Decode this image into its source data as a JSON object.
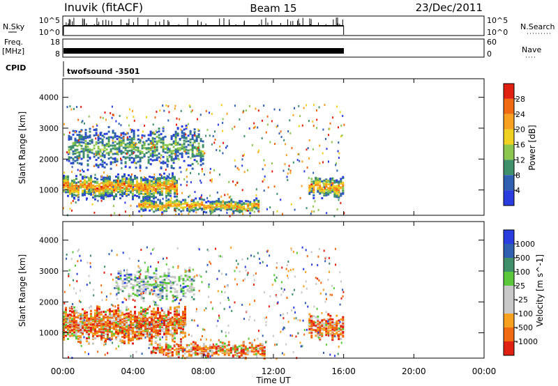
{
  "header": {
    "station": "Inuvik (fitACF)",
    "beam": "Beam 15",
    "date": "23/Dec/2011"
  },
  "status_panels": {
    "nsky_label": "N.Sky",
    "nsky_ticks": [
      "10^5",
      "10^0"
    ],
    "nsearch_label": "N.Search",
    "freq_label": "Freq.",
    "freq_unit": "[MHz]",
    "freq_ticks": [
      "18",
      "8"
    ],
    "nave_label": "Nave",
    "nave_ticks": [
      "60",
      "0"
    ],
    "cpid_label": "CPID",
    "cpid_value": "twofsound -3501"
  },
  "time_axis": {
    "label": "Time UT",
    "ticks": [
      "00:00",
      "04:00",
      "08:00",
      "12:00",
      "16:00",
      "20:00",
      "00:00"
    ]
  },
  "colors": {
    "power_scale": [
      "#2a3ee0",
      "#2f5fb0",
      "#3f8f6a",
      "#8cc850",
      "#f0d020",
      "#f8a020",
      "#f06a10",
      "#e02010"
    ],
    "velocity_scale": [
      "#e02010",
      "#f06a10",
      "#f8a020",
      "#c8c8c8",
      "#c8c8c8",
      "#5ac83a",
      "#3f8f6a",
      "#2f5fb0",
      "#2a3ee0"
    ]
  },
  "chart_data": [
    {
      "type": "heatmap",
      "title": "Power",
      "xlabel": "Time UT",
      "ylabel": "Slant Range [km]",
      "y_ticks": [
        1000,
        2000,
        3000,
        4000
      ],
      "ylim": [
        180,
        4600
      ],
      "xlim_hours": [
        0,
        24
      ],
      "data_extent_hours": [
        0,
        16
      ],
      "colorbar_label": "Power [dB]",
      "colorbar_ticks": [
        4,
        8,
        12,
        16,
        20,
        24,
        28
      ],
      "bands": [
        {
          "t0": 0.0,
          "t1": 6.5,
          "r_center": 1150,
          "r_half_width": 350,
          "intensity": 0.85
        },
        {
          "t0": 4.3,
          "t1": 11.2,
          "r_center": 520,
          "r_half_width": 200,
          "intensity": 0.8
        },
        {
          "t0": 14.0,
          "t1": 16.0,
          "r_center": 1150,
          "r_half_width": 300,
          "intensity": 0.8
        },
        {
          "t0": 0.3,
          "t1": 8.0,
          "r_center": 2400,
          "r_half_width": 600,
          "intensity": 0.4
        }
      ]
    },
    {
      "type": "heatmap",
      "title": "Velocity",
      "xlabel": "Time UT",
      "ylabel": "Slant Range [km]",
      "y_ticks": [
        1000,
        2000,
        3000,
        4000
      ],
      "ylim": [
        180,
        4600
      ],
      "xlim_hours": [
        0,
        24
      ],
      "data_extent_hours": [
        0,
        16
      ],
      "colorbar_label": "Velocity [m s^-1]",
      "colorbar_ticks": [
        1000,
        500,
        100,
        25,
        -25,
        -100,
        -500,
        -1000
      ],
      "bands": [
        {
          "t0": 0.0,
          "t1": 7.0,
          "r_center": 1300,
          "r_half_width": 500,
          "intensity": 0.85
        },
        {
          "t0": 5.0,
          "t1": 11.5,
          "r_center": 480,
          "r_half_width": 220,
          "intensity": 0.6
        },
        {
          "t0": 14.0,
          "t1": 16.0,
          "r_center": 1200,
          "r_half_width": 350,
          "intensity": 0.7
        },
        {
          "t0": 3.0,
          "t1": 7.5,
          "r_center": 2600,
          "r_half_width": 450,
          "intensity": 0.35
        }
      ]
    }
  ]
}
